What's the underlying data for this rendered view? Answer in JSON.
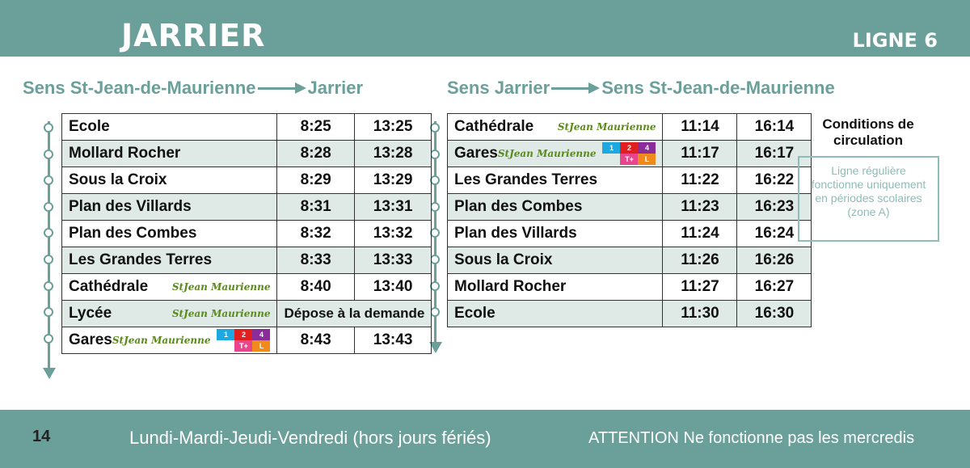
{
  "header": {
    "title": "JARRIER",
    "ligne": "LIGNE 6"
  },
  "left": {
    "from": "Sens St-Jean-de-Maurienne",
    "to": "Jarrier",
    "rows": [
      {
        "stop": "Ecole",
        "t1": "8:25",
        "t2": "13:25"
      },
      {
        "stop": "Mollard Rocher",
        "t1": "8:28",
        "t2": "13:28"
      },
      {
        "stop": "Sous la Croix",
        "t1": "8:29",
        "t2": "13:29"
      },
      {
        "stop": "Plan des Villards",
        "t1": "8:31",
        "t2": "13:31"
      },
      {
        "stop": "Plan des Combes",
        "t1": "8:32",
        "t2": "13:32"
      },
      {
        "stop": "Les Grandes Terres",
        "t1": "8:33",
        "t2": "13:33"
      },
      {
        "stop": "Cathédrale",
        "t1": "8:40",
        "t2": "13:40",
        "logo": "StJean Maurienne"
      },
      {
        "stop": "Lycée",
        "merged": "Dépose à la demande",
        "logo": "StJean Maurienne"
      },
      {
        "stop": "Gares",
        "t1": "8:43",
        "t2": "13:43",
        "logo": "StJean Maurienne"
      }
    ]
  },
  "right": {
    "from": "Sens Jarrier",
    "to": "Sens St-Jean-de-Maurienne",
    "rows": [
      {
        "stop": "Cathédrale",
        "t1": "11:14",
        "t2": "16:14",
        "logo": "StJean Maurienne"
      },
      {
        "stop": "Gares",
        "t1": "11:17",
        "t2": "16:17",
        "logo": "StJean Maurienne"
      },
      {
        "stop": "Les Grandes Terres",
        "t1": "11:22",
        "t2": "16:22"
      },
      {
        "stop": "Plan des Combes",
        "t1": "11:23",
        "t2": "16:23"
      },
      {
        "stop": "Plan des Villards",
        "t1": "11:24",
        "t2": "16:24"
      },
      {
        "stop": "Sous la Croix",
        "t1": "11:26",
        "t2": "16:26"
      },
      {
        "stop": "Mollard Rocher",
        "t1": "11:27",
        "t2": "16:27"
      },
      {
        "stop": "Ecole",
        "t1": "11:30",
        "t2": "16:30"
      }
    ]
  },
  "badges": [
    {
      "label": "1",
      "color": "#1ea8e0"
    },
    {
      "label": "2",
      "color": "#e02020"
    },
    {
      "label": "4",
      "color": "#8a2c9a"
    },
    {
      "label": "",
      "color": ""
    },
    {
      "label": "T+",
      "color": "#e8458c"
    },
    {
      "label": "L",
      "color": "#f08a1c"
    }
  ],
  "conditions": {
    "title": "Conditions de circulation",
    "text": "Ligne régulière fonctionne uniquement en périodes scolaires (zone A)"
  },
  "footer": {
    "page": "14",
    "days": "Lundi-Mardi-Jeudi-Vendredi (hors jours fériés)",
    "attention": "ATTENTION Ne fonctionne pas les mercredis"
  }
}
